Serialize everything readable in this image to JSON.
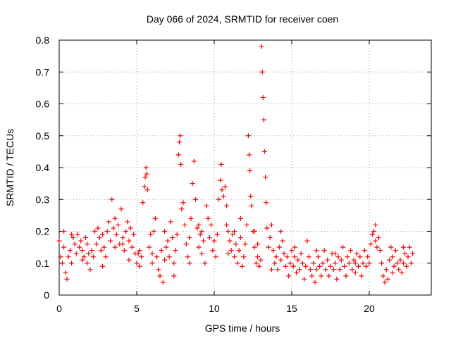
{
  "chart_data": {
    "type": "scatter",
    "title": "Day 066 of 2024, SRMTID for receiver coen",
    "xlabel": "GPS time / hours",
    "ylabel": "SRMTID / TECUs",
    "xlim": [
      0,
      24
    ],
    "ylim": [
      0,
      0.8
    ],
    "x_ticks": [
      "0",
      "5",
      "10",
      "15",
      "20"
    ],
    "y_ticks": [
      "0",
      "0.1",
      "0.2",
      "0.3",
      "0.4",
      "0.5",
      "0.6",
      "0.7",
      "0.8"
    ],
    "grid": true,
    "marker": "+",
    "series": [
      {
        "name": "SRMTID",
        "color": "#ff0000",
        "points": [
          [
            0.0,
            0.17
          ],
          [
            0.1,
            0.12
          ],
          [
            0.2,
            0.1
          ],
          [
            0.3,
            0.15
          ],
          [
            0.4,
            0.07
          ],
          [
            0.5,
            0.05
          ],
          [
            0.6,
            0.12
          ],
          [
            0.7,
            0.14
          ],
          [
            0.8,
            0.1
          ],
          [
            0.9,
            0.18
          ],
          [
            1.0,
            0.16
          ],
          [
            1.1,
            0.13
          ],
          [
            1.2,
            0.19
          ],
          [
            1.3,
            0.15
          ],
          [
            1.4,
            0.17
          ],
          [
            1.5,
            0.14
          ],
          [
            1.6,
            0.12
          ],
          [
            1.7,
            0.18
          ],
          [
            1.8,
            0.1
          ],
          [
            1.9,
            0.13
          ],
          [
            2.0,
            0.08
          ],
          [
            2.1,
            0.14
          ],
          [
            2.2,
            0.12
          ],
          [
            2.3,
            0.2
          ],
          [
            2.4,
            0.16
          ],
          [
            2.5,
            0.21
          ],
          [
            2.6,
            0.18
          ],
          [
            2.7,
            0.14
          ],
          [
            2.8,
            0.19
          ],
          [
            2.9,
            0.15
          ],
          [
            3.0,
            0.12
          ],
          [
            3.1,
            0.2
          ],
          [
            3.2,
            0.23
          ],
          [
            3.3,
            0.17
          ],
          [
            3.4,
            0.3
          ],
          [
            3.5,
            0.21
          ],
          [
            3.6,
            0.15
          ],
          [
            3.7,
            0.19
          ],
          [
            3.8,
            0.22
          ],
          [
            3.9,
            0.16
          ],
          [
            4.0,
            0.27
          ],
          [
            4.1,
            0.18
          ],
          [
            4.2,
            0.14
          ],
          [
            4.3,
            0.2
          ],
          [
            4.4,
            0.23
          ],
          [
            4.5,
            0.17
          ],
          [
            4.6,
            0.21
          ],
          [
            4.7,
            0.15
          ],
          [
            4.8,
            0.19
          ],
          [
            4.9,
            0.13
          ],
          [
            5.0,
            0.1
          ],
          [
            5.1,
            0.13
          ],
          [
            5.2,
            0.09
          ],
          [
            5.3,
            0.12
          ],
          [
            5.4,
            0.29
          ],
          [
            5.5,
            0.34
          ],
          [
            5.55,
            0.37
          ],
          [
            5.6,
            0.4
          ],
          [
            5.65,
            0.38
          ],
          [
            5.7,
            0.33
          ],
          [
            5.8,
            0.15
          ],
          [
            5.9,
            0.19
          ],
          [
            6.0,
            0.13
          ],
          [
            6.1,
            0.2
          ],
          [
            6.2,
            0.24
          ],
          [
            6.3,
            0.12
          ],
          [
            6.4,
            0.08
          ],
          [
            6.5,
            0.06
          ],
          [
            6.6,
            0.14
          ],
          [
            6.7,
            0.04
          ],
          [
            6.8,
            0.11
          ],
          [
            6.9,
            0.15
          ],
          [
            7.0,
            0.17
          ],
          [
            7.1,
            0.12
          ],
          [
            7.2,
            0.23
          ],
          [
            7.3,
            0.18
          ],
          [
            7.4,
            0.1
          ],
          [
            7.5,
            0.14
          ],
          [
            7.6,
            0.19
          ],
          [
            7.7,
            0.44
          ],
          [
            7.75,
            0.48
          ],
          [
            7.8,
            0.5
          ],
          [
            7.85,
            0.41
          ],
          [
            7.9,
            0.27
          ],
          [
            8.0,
            0.29
          ],
          [
            8.1,
            0.22
          ],
          [
            8.2,
            0.16
          ],
          [
            8.3,
            0.12
          ],
          [
            8.4,
            0.18
          ],
          [
            8.5,
            0.24
          ],
          [
            8.6,
            0.35
          ],
          [
            8.7,
            0.42
          ],
          [
            8.8,
            0.3
          ],
          [
            8.9,
            0.21
          ],
          [
            9.0,
            0.15
          ],
          [
            9.1,
            0.19
          ],
          [
            9.2,
            0.13
          ],
          [
            9.3,
            0.17
          ],
          [
            9.4,
            0.1
          ],
          [
            9.5,
            0.28
          ],
          [
            9.6,
            0.24
          ],
          [
            9.7,
            0.18
          ],
          [
            9.8,
            0.22
          ],
          [
            9.9,
            0.14
          ],
          [
            10.0,
            0.17
          ],
          [
            10.1,
            0.12
          ],
          [
            10.2,
            0.19
          ],
          [
            10.3,
            0.3
          ],
          [
            10.4,
            0.36
          ],
          [
            10.45,
            0.41
          ],
          [
            10.5,
            0.33
          ],
          [
            10.6,
            0.31
          ],
          [
            10.7,
            0.34
          ],
          [
            10.8,
            0.28
          ],
          [
            10.9,
            0.2
          ],
          [
            11.0,
            0.17
          ],
          [
            11.1,
            0.14
          ],
          [
            11.2,
            0.19
          ],
          [
            11.3,
            0.12
          ],
          [
            11.4,
            0.16
          ],
          [
            11.5,
            0.1
          ],
          [
            11.6,
            0.14
          ],
          [
            11.7,
            0.18
          ],
          [
            11.8,
            0.09
          ],
          [
            11.9,
            0.12
          ],
          [
            12.0,
            0.16
          ],
          [
            12.1,
            0.22
          ],
          [
            12.2,
            0.5
          ],
          [
            12.25,
            0.44
          ],
          [
            12.3,
            0.39
          ],
          [
            12.35,
            0.31
          ],
          [
            12.4,
            0.28
          ],
          [
            12.5,
            0.2
          ],
          [
            12.6,
            0.15
          ],
          [
            12.7,
            0.1
          ],
          [
            12.8,
            0.12
          ],
          [
            12.9,
            0.09
          ],
          [
            13.0,
            0.11
          ],
          [
            13.05,
            0.78
          ],
          [
            13.1,
            0.7
          ],
          [
            13.15,
            0.62
          ],
          [
            13.2,
            0.55
          ],
          [
            13.25,
            0.45
          ],
          [
            13.3,
            0.37
          ],
          [
            13.35,
            0.29
          ],
          [
            13.4,
            0.21
          ],
          [
            13.5,
            0.15
          ],
          [
            13.6,
            0.18
          ],
          [
            13.7,
            0.22
          ],
          [
            13.8,
            0.14
          ],
          [
            13.9,
            0.1
          ],
          [
            14.0,
            0.12
          ],
          [
            14.1,
            0.08
          ],
          [
            14.2,
            0.15
          ],
          [
            14.3,
            0.11
          ],
          [
            14.4,
            0.17
          ],
          [
            14.5,
            0.13
          ],
          [
            14.6,
            0.09
          ],
          [
            14.7,
            0.12
          ],
          [
            14.8,
            0.06
          ],
          [
            14.9,
            0.1
          ],
          [
            15.0,
            0.14
          ],
          [
            15.1,
            0.09
          ],
          [
            15.2,
            0.12
          ],
          [
            15.3,
            0.07
          ],
          [
            15.4,
            0.11
          ],
          [
            15.5,
            0.08
          ],
          [
            15.6,
            0.13
          ],
          [
            15.7,
            0.1
          ],
          [
            15.8,
            0.05
          ],
          [
            15.9,
            0.09
          ],
          [
            16.0,
            0.17
          ],
          [
            16.1,
            0.12
          ],
          [
            16.2,
            0.08
          ],
          [
            16.3,
            0.06
          ],
          [
            16.4,
            0.1
          ],
          [
            16.5,
            0.04
          ],
          [
            16.6,
            0.08
          ],
          [
            16.7,
            0.12
          ],
          [
            16.8,
            0.09
          ],
          [
            16.9,
            0.06
          ],
          [
            17.0,
            0.1
          ],
          [
            17.1,
            0.14
          ],
          [
            17.2,
            0.08
          ],
          [
            17.3,
            0.11
          ],
          [
            17.4,
            0.06
          ],
          [
            17.5,
            0.09
          ],
          [
            17.6,
            0.13
          ],
          [
            17.7,
            0.08
          ],
          [
            17.8,
            0.1
          ],
          [
            17.9,
            0.05
          ],
          [
            18.0,
            0.12
          ],
          [
            18.1,
            0.08
          ],
          [
            18.2,
            0.11
          ],
          [
            18.3,
            0.15
          ],
          [
            18.4,
            0.09
          ],
          [
            18.5,
            0.06
          ],
          [
            18.6,
            0.12
          ],
          [
            18.7,
            0.1
          ],
          [
            18.8,
            0.14
          ],
          [
            18.9,
            0.08
          ],
          [
            19.0,
            0.11
          ],
          [
            19.1,
            0.07
          ],
          [
            19.2,
            0.13
          ],
          [
            19.3,
            0.09
          ],
          [
            19.4,
            0.12
          ],
          [
            19.5,
            0.06
          ],
          [
            19.6,
            0.1
          ],
          [
            19.7,
            0.14
          ],
          [
            19.8,
            0.09
          ],
          [
            19.9,
            0.12
          ],
          [
            20.0,
            0.1
          ],
          [
            20.1,
            0.16
          ],
          [
            20.2,
            0.19
          ],
          [
            20.3,
            0.2
          ],
          [
            20.4,
            0.17
          ],
          [
            20.5,
            0.15
          ],
          [
            20.6,
            0.18
          ],
          [
            20.7,
            0.14
          ],
          [
            20.8,
            0.1
          ],
          [
            20.9,
            0.06
          ],
          [
            21.0,
            0.04
          ],
          [
            21.1,
            0.08
          ],
          [
            21.2,
            0.05
          ],
          [
            21.3,
            0.11
          ],
          [
            21.4,
            0.15
          ],
          [
            21.5,
            0.12
          ],
          [
            21.6,
            0.09
          ],
          [
            21.7,
            0.14
          ],
          [
            21.8,
            0.1
          ],
          [
            21.9,
            0.08
          ],
          [
            22.0,
            0.11
          ],
          [
            22.1,
            0.07
          ],
          [
            22.2,
            0.1
          ],
          [
            22.3,
            0.13
          ],
          [
            22.4,
            0.09
          ],
          [
            22.5,
            0.12
          ],
          [
            22.6,
            0.15
          ],
          [
            22.7,
            0.1
          ],
          [
            22.8,
            0.13
          ],
          [
            0.3,
            0.2
          ],
          [
            1.5,
            0.11
          ],
          [
            2.8,
            0.09
          ],
          [
            3.6,
            0.24
          ],
          [
            4.5,
            0.11
          ],
          [
            6.8,
            0.2
          ],
          [
            7.4,
            0.06
          ],
          [
            8.4,
            0.1
          ],
          [
            9.2,
            0.2
          ],
          [
            10.9,
            0.13
          ],
          [
            11.7,
            0.24
          ],
          [
            12.6,
            0.2
          ],
          [
            13.7,
            0.08
          ],
          [
            14.3,
            0.2
          ],
          [
            15.2,
            0.15
          ],
          [
            16.6,
            0.14
          ],
          [
            17.8,
            0.13
          ],
          [
            19.1,
            0.1
          ],
          [
            20.4,
            0.22
          ],
          [
            21.5,
            0.07
          ],
          [
            22.2,
            0.15
          ],
          [
            0.8,
            0.19
          ],
          [
            1.8,
            0.16
          ],
          [
            4.1,
            0.16
          ],
          [
            5.2,
            0.14
          ],
          [
            6.0,
            0.1
          ],
          [
            9.0,
            0.22
          ],
          [
            10.8,
            0.22
          ],
          [
            11.3,
            0.2
          ],
          [
            12.8,
            0.16
          ]
        ]
      }
    ]
  }
}
